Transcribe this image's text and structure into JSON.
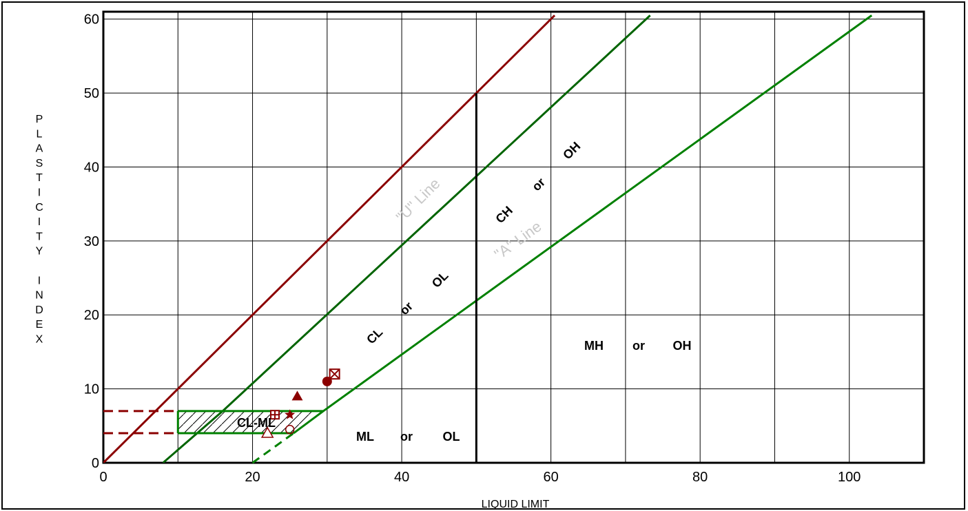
{
  "chart_data": {
    "type": "scatter",
    "title": "",
    "xlabel": "LIQUID LIMIT",
    "ylabel": "PLASTICITY INDEX",
    "xlim": [
      0,
      110
    ],
    "ylim": [
      0,
      61
    ],
    "x_ticks": [
      "0",
      "20",
      "40",
      "60",
      "80",
      "100"
    ],
    "y_ticks": [
      "0",
      "10",
      "20",
      "30",
      "40",
      "50",
      "60"
    ],
    "grid": true,
    "reference_lines": [
      {
        "name": "\"U\" Line",
        "color": "#006400",
        "points": [
          [
            8,
            0
          ],
          [
            16,
            7
          ],
          [
            73.3,
            60.5
          ]
        ]
      },
      {
        "name": "\"A\" Line",
        "color": "#008000",
        "points": [
          [
            25.5,
            4
          ],
          [
            29.5,
            7
          ],
          [
            103,
            60.5
          ]
        ]
      },
      {
        "name": "",
        "color": "#8b0000",
        "points": [
          [
            0,
            0
          ],
          [
            60.5,
            60.5
          ]
        ]
      },
      {
        "name": "",
        "color": "#000000",
        "points": [
          [
            50,
            0
          ],
          [
            50,
            50
          ]
        ]
      }
    ],
    "zone_labels": {
      "cl_ol": {
        "cl": "CL",
        "or": "or",
        "ol": "OL"
      },
      "ch_oh": {
        "ch": "CH",
        "or": "or",
        "oh": "OH"
      },
      "ml_ol": {
        "ml": "ML",
        "or": "or",
        "ol": "OL"
      },
      "mh_oh": {
        "mh": "MH",
        "or": "or",
        "oh": "OH"
      },
      "cl_ml": "CL-ML",
      "u_line": "\"U\" Line",
      "a_line": "\"A\" Line"
    },
    "series": [
      {
        "marker": "circle-filled",
        "x": 30,
        "y": 11
      },
      {
        "marker": "square-x",
        "x": 31,
        "y": 12
      },
      {
        "marker": "triangle-filled",
        "x": 26,
        "y": 9
      },
      {
        "marker": "star",
        "x": 25,
        "y": 6.5
      },
      {
        "marker": "square-cross",
        "x": 23,
        "y": 6.5
      },
      {
        "marker": "circle-open",
        "x": 25,
        "y": 4.5
      },
      {
        "marker": "triangle-open",
        "x": 22,
        "y": 4
      }
    ],
    "colors": {
      "dark_red": "#8b0000",
      "green": "#008000",
      "grid": "#000000"
    }
  }
}
